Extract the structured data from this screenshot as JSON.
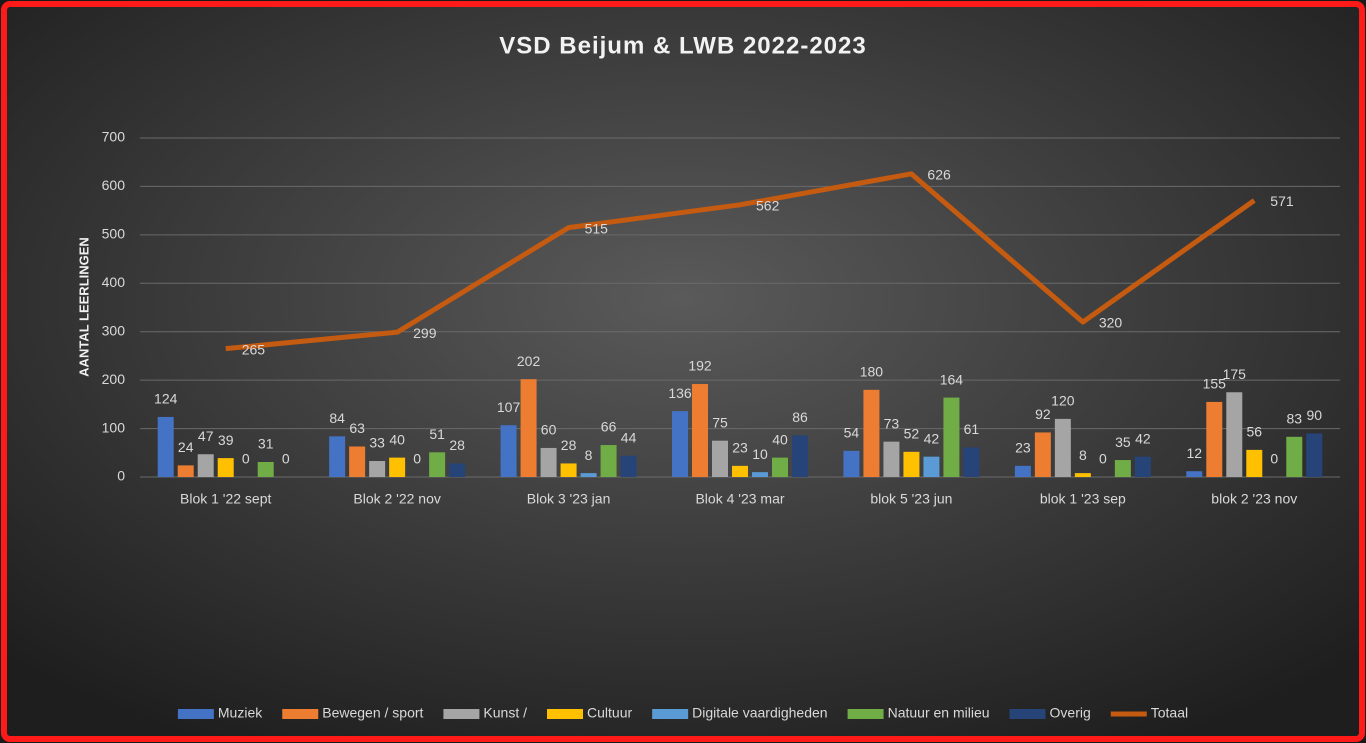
{
  "chart_data": {
    "type": "bar",
    "title": "VSD Beijum & LWB 2022-2023",
    "y_label": "AANTAL LEERLINGEN",
    "categories": [
      "Blok 1 '22 sept",
      "Blok 2 '22 nov",
      "Blok 3 '23 jan",
      "Blok 4 '23 mar",
      "blok  5 '23 jun",
      "blok 1 '23 sep",
      "blok 2 '23 nov"
    ],
    "series": [
      {
        "name": "Muziek",
        "color": "#4472c4",
        "values": [
          124,
          84,
          107,
          136,
          54,
          23,
          12
        ]
      },
      {
        "name": "Bewegen / sport",
        "color": "#ed7d31",
        "values": [
          24,
          63,
          202,
          192,
          180,
          92,
          155
        ]
      },
      {
        "name": "Kunst /",
        "color": "#a5a5a5",
        "values": [
          47,
          33,
          60,
          75,
          73,
          120,
          175
        ]
      },
      {
        "name": "Cultuur",
        "color": "#ffc000",
        "values": [
          39,
          40,
          28,
          23,
          52,
          8,
          56
        ]
      },
      {
        "name": "Digitale vaardigheden",
        "color": "#5b9bd5",
        "values": [
          0,
          0,
          8,
          10,
          42,
          0,
          0
        ]
      },
      {
        "name": "Natuur en milieu",
        "color": "#70ad47",
        "values": [
          31,
          51,
          66,
          40,
          164,
          35,
          83
        ]
      },
      {
        "name": "Overig",
        "color": "#264478",
        "values": [
          0,
          28,
          44,
          86,
          61,
          42,
          90
        ]
      },
      {
        "name": "Totaal",
        "color": "#c55a11",
        "type": "line",
        "values": [
          265,
          299,
          515,
          562,
          626,
          320,
          571
        ]
      }
    ],
    "ylim": [
      0,
      700
    ],
    "yticks": [
      0,
      100,
      200,
      300,
      400,
      500,
      600,
      700
    ],
    "grid": true,
    "legend": "bottom"
  }
}
